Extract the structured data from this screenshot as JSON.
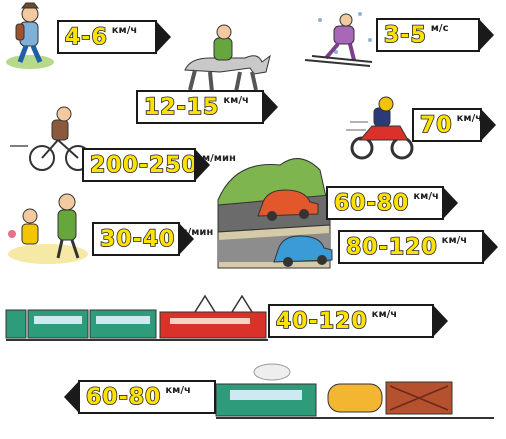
{
  "signs": [
    {
      "id": "walk",
      "value": "4-6",
      "unit": "км/ч"
    },
    {
      "id": "horse",
      "value": "12-15",
      "unit": "км/ч"
    },
    {
      "id": "ski",
      "value": "3-5",
      "unit": "м/с"
    },
    {
      "id": "moto",
      "value": "70",
      "unit": "км/ч"
    },
    {
      "id": "bike",
      "value": "200-250",
      "unit": "м/мин"
    },
    {
      "id": "car",
      "value": "60-80",
      "unit": "км/ч"
    },
    {
      "id": "kids",
      "value": "30-40",
      "unit": "м/мин"
    },
    {
      "id": "truck",
      "value": "80-120",
      "unit": "км/ч"
    },
    {
      "id": "electric-train",
      "value": "40-120",
      "unit": "км/ч"
    },
    {
      "id": "freight-train",
      "value": "60-80",
      "unit": "км/ч"
    }
  ],
  "colors": {
    "sign_text": "#ffe200",
    "outline": "#1a1a1a",
    "train_red": "#d8322a",
    "train_green": "#2e9b7a"
  }
}
